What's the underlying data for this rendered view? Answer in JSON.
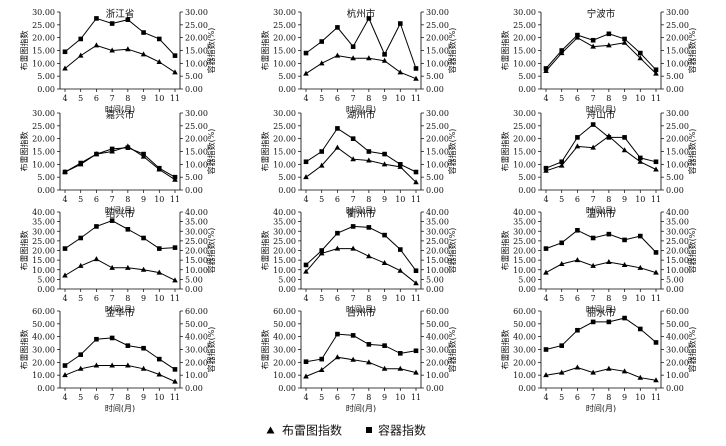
{
  "legend": {
    "lightning_label": "布雷图指数",
    "container_label": "容器指数"
  },
  "axis_text": {
    "xlabel": "时间(月)",
    "ylabel_left": "布雷图指数",
    "ylabel_right": "容器指数(%)"
  },
  "colors": {
    "line": "#000000",
    "axis": "#000000"
  },
  "chart_data": [
    {
      "type": "line",
      "title": "浙江省",
      "x": [
        4,
        5,
        6,
        7,
        8,
        9,
        10,
        11
      ],
      "ylim": [
        0,
        30
      ],
      "yticks": [
        0,
        5,
        10,
        15,
        20,
        25,
        30
      ],
      "series": [
        {
          "name": "布雷图指数",
          "marker": "triangle",
          "values": [
            8,
            13,
            17,
            15,
            15.5,
            13.5,
            10.5,
            6.5
          ]
        },
        {
          "name": "容器指数",
          "marker": "square",
          "values": [
            14.5,
            19.5,
            27.5,
            25.5,
            27,
            22,
            19.5,
            13
          ]
        }
      ]
    },
    {
      "type": "line",
      "title": "杭州市",
      "x": [
        4,
        5,
        6,
        7,
        8,
        9,
        10,
        11
      ],
      "ylim": [
        0,
        30
      ],
      "yticks": [
        0,
        5,
        10,
        15,
        20,
        25,
        30
      ],
      "series": [
        {
          "name": "布雷图指数",
          "marker": "triangle",
          "values": [
            6,
            10,
            13,
            12,
            12,
            11,
            6.5,
            4
          ]
        },
        {
          "name": "容器指数",
          "marker": "square",
          "values": [
            14,
            18.5,
            24,
            16.5,
            27.5,
            13.5,
            25.5,
            8
          ]
        }
      ]
    },
    {
      "type": "line",
      "title": "宁波市",
      "x": [
        4,
        5,
        6,
        7,
        8,
        9,
        10,
        11
      ],
      "ylim": [
        0,
        30
      ],
      "yticks": [
        0,
        5,
        10,
        15,
        20,
        25,
        30
      ],
      "series": [
        {
          "name": "布雷图指数",
          "marker": "triangle",
          "values": [
            7,
            14,
            20,
            16.5,
            17,
            18,
            12,
            6
          ]
        },
        {
          "name": "容器指数",
          "marker": "square",
          "values": [
            8,
            15,
            21,
            19,
            21.5,
            19.5,
            14,
            7.5
          ]
        }
      ]
    },
    {
      "type": "line",
      "title": "嘉兴市",
      "x": [
        4,
        5,
        6,
        7,
        8,
        9,
        10,
        11
      ],
      "ylim": [
        0,
        30
      ],
      "yticks": [
        0,
        5,
        10,
        15,
        20,
        25,
        30
      ],
      "series": [
        {
          "name": "布雷图指数",
          "marker": "triangle",
          "values": [
            7,
            10,
            14,
            15,
            17,
            13,
            8,
            4
          ]
        },
        {
          "name": "容器指数",
          "marker": "square",
          "values": [
            7,
            10.5,
            14,
            16,
            16.5,
            14,
            8.5,
            5
          ]
        }
      ]
    },
    {
      "type": "line",
      "title": "湖州市",
      "x": [
        4,
        5,
        6,
        7,
        8,
        9,
        10,
        11
      ],
      "ylim": [
        0,
        30
      ],
      "yticks": [
        0,
        5,
        10,
        15,
        20,
        25,
        30
      ],
      "series": [
        {
          "name": "布雷图指数",
          "marker": "triangle",
          "values": [
            5,
            9.5,
            16.5,
            12,
            11.5,
            10,
            9,
            3
          ]
        },
        {
          "name": "容器指数",
          "marker": "square",
          "values": [
            11,
            15,
            24,
            20,
            15,
            14,
            10,
            7
          ]
        }
      ]
    },
    {
      "type": "line",
      "title": "舟山市",
      "x": [
        4,
        5,
        6,
        7,
        8,
        9,
        10,
        11
      ],
      "ylim": [
        0,
        30
      ],
      "yticks": [
        0,
        5,
        10,
        15,
        20,
        25,
        30
      ],
      "series": [
        {
          "name": "布雷图指数",
          "marker": "triangle",
          "values": [
            7.5,
            9.5,
            17,
            16.5,
            21,
            15.5,
            11,
            8
          ]
        },
        {
          "name": "容器指数",
          "marker": "square",
          "values": [
            8.5,
            11,
            20.5,
            25.5,
            20.5,
            20.5,
            12.5,
            11
          ]
        }
      ]
    },
    {
      "type": "line",
      "title": "绍兴市",
      "x": [
        4,
        5,
        6,
        7,
        8,
        9,
        10,
        11
      ],
      "ylim": [
        0,
        40
      ],
      "yticks": [
        0,
        5,
        10,
        15,
        20,
        25,
        30,
        35,
        40
      ],
      "series": [
        {
          "name": "布雷图指数",
          "marker": "triangle",
          "values": [
            7,
            12,
            15.5,
            11,
            11,
            10,
            8.5,
            4.5
          ]
        },
        {
          "name": "容器指数",
          "marker": "square",
          "values": [
            21,
            26.5,
            32.5,
            35.5,
            31,
            26.5,
            21,
            21.5
          ]
        }
      ]
    },
    {
      "type": "line",
      "title": "衢州市",
      "x": [
        4,
        5,
        6,
        7,
        8,
        9,
        10,
        11
      ],
      "ylim": [
        0,
        40
      ],
      "yticks": [
        0,
        5,
        10,
        15,
        20,
        25,
        30,
        35,
        40
      ],
      "series": [
        {
          "name": "布雷图指数",
          "marker": "triangle",
          "values": [
            9,
            18.5,
            21,
            21,
            17,
            13.5,
            9.5,
            3
          ]
        },
        {
          "name": "容器指数",
          "marker": "square",
          "values": [
            12.5,
            20,
            29,
            32.5,
            32,
            28,
            20.5,
            9.5
          ]
        }
      ]
    },
    {
      "type": "line",
      "title": "温州市",
      "x": [
        4,
        5,
        6,
        7,
        8,
        9,
        10,
        11
      ],
      "ylim": [
        0,
        40
      ],
      "yticks": [
        0,
        5,
        10,
        15,
        20,
        25,
        30,
        35,
        40
      ],
      "series": [
        {
          "name": "布雷图指数",
          "marker": "triangle",
          "values": [
            8.5,
            13,
            15,
            12,
            14,
            12.5,
            11,
            8.5
          ]
        },
        {
          "name": "容器指数",
          "marker": "square",
          "values": [
            21,
            24,
            30.5,
            26.5,
            28.5,
            25.5,
            27.5,
            19
          ]
        }
      ]
    },
    {
      "type": "line",
      "title": "金华市",
      "x": [
        4,
        5,
        6,
        7,
        8,
        9,
        10,
        11
      ],
      "ylim": [
        0,
        60
      ],
      "yticks": [
        0,
        10,
        20,
        30,
        40,
        50,
        60
      ],
      "series": [
        {
          "name": "布雷图指数",
          "marker": "triangle",
          "values": [
            10,
            15,
            17.5,
            17.5,
            17.5,
            15,
            10.5,
            5
          ]
        },
        {
          "name": "容器指数",
          "marker": "square",
          "values": [
            17.5,
            26,
            38,
            39,
            33,
            31,
            22.5,
            14.5
          ]
        }
      ]
    },
    {
      "type": "line",
      "title": "台州市",
      "x": [
        4,
        5,
        6,
        7,
        8,
        9,
        10,
        11
      ],
      "ylim": [
        0,
        60
      ],
      "yticks": [
        0,
        10,
        20,
        30,
        40,
        50,
        60
      ],
      "series": [
        {
          "name": "布雷图指数",
          "marker": "triangle",
          "values": [
            9,
            14,
            24,
            22,
            20,
            15,
            15,
            12
          ]
        },
        {
          "name": "容器指数",
          "marker": "square",
          "values": [
            20.5,
            22.5,
            42,
            41,
            34,
            33,
            27,
            29
          ]
        }
      ]
    },
    {
      "type": "line",
      "title": "丽水市",
      "x": [
        4,
        5,
        6,
        7,
        8,
        9,
        10,
        11
      ],
      "ylim": [
        0,
        60
      ],
      "yticks": [
        0,
        10,
        20,
        30,
        40,
        50,
        60
      ],
      "series": [
        {
          "name": "布雷图指数",
          "marker": "triangle",
          "values": [
            10,
            12,
            16,
            12,
            15,
            13,
            8,
            6
          ]
        },
        {
          "name": "容器指数",
          "marker": "square",
          "values": [
            30,
            33,
            45,
            51.5,
            51.5,
            54.5,
            46,
            35.5
          ]
        }
      ]
    }
  ]
}
